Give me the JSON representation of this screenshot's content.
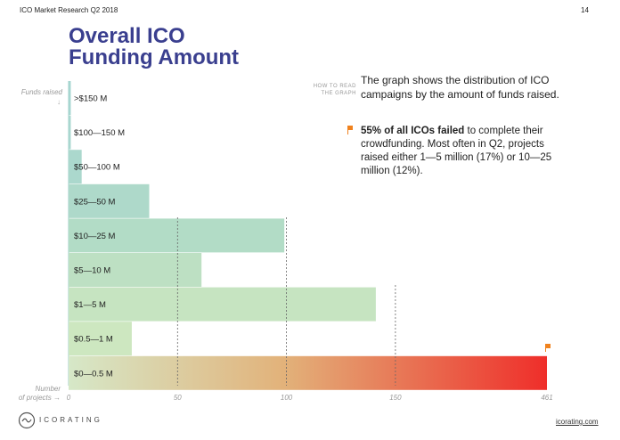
{
  "header": {
    "report_title": "ICO Market Research Q2 2018",
    "page_number": "14"
  },
  "title": {
    "line1": "Overall ICO",
    "line2": "Funding Amount"
  },
  "how_to_read": {
    "line1": "HOW TO READ",
    "line2": "THE GRAPH"
  },
  "description": "The graph shows the distribution of ICO campaigns by the amount of funds raised.",
  "finding": {
    "bold": "55% of all ICOs failed",
    "rest": " to complete their crowdfunding. Most often in Q2, projects raised either 1—5 million (17%) or 10—25 million (12%)."
  },
  "axis": {
    "y_title": "Funds raised",
    "x_title_line1": "Number",
    "x_title_line2": "of projects"
  },
  "footer": {
    "brand": "ICORATING",
    "url": "icorating.com"
  },
  "colors": {
    "title": "#3a3f8f",
    "flag": "#f0821e",
    "failed_gradient_start": "#d6e8c8",
    "failed_gradient_end": "#ef2e2a"
  },
  "chart_data": {
    "type": "bar",
    "orientation": "horizontal",
    "categories": [
      ">$150 M",
      "$100—150 M",
      "$50—100 M",
      "$25—50 M",
      "$10—25 M",
      "$5—10 M",
      "$1—5 M",
      "$0.5—1 M",
      "$0—0.5 M"
    ],
    "values": [
      1,
      1,
      6,
      37,
      99,
      61,
      141,
      29,
      461
    ],
    "bar_colors": [
      "#a6d6d0",
      "#a9d7cf",
      "#abd8cd",
      "#aed9ca",
      "#b2dcc6",
      "#bde0c3",
      "#c6e4c1",
      "#cde7c0",
      "gradient"
    ],
    "x_ticks": [
      0,
      50,
      100,
      150,
      461
    ],
    "x_tick_labels": [
      "0",
      "50",
      "100",
      "150",
      "461"
    ],
    "grid": "vertical dashed at 50, 100, 150",
    "xlabel": "Number of projects",
    "ylabel": "Funds raised"
  }
}
